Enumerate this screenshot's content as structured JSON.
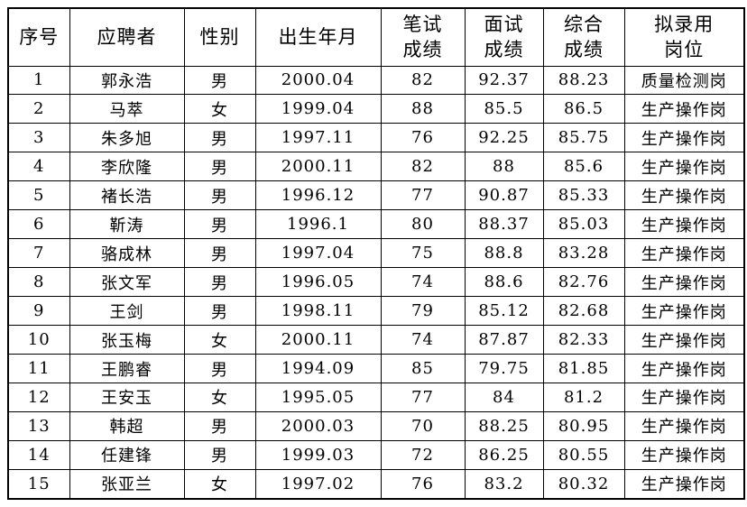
{
  "table": {
    "columns": [
      "序号",
      "应聘者",
      "性别",
      "出生年月",
      "笔试\n成绩",
      "面试\n成绩",
      "综合\n成绩",
      "拟录用\n岗位"
    ],
    "rows": [
      [
        "1",
        "郭永浩",
        "男",
        "2000.04",
        "82",
        "92.37",
        "88.23",
        "质量检测岗"
      ],
      [
        "2",
        "马萃",
        "女",
        "1999.04",
        "88",
        "85.5",
        "86.5",
        "生产操作岗"
      ],
      [
        "3",
        "朱多旭",
        "男",
        "1997.11",
        "76",
        "92.25",
        "85.75",
        "生产操作岗"
      ],
      [
        "4",
        "李欣隆",
        "男",
        "2000.11",
        "82",
        "88",
        "85.6",
        "生产操作岗"
      ],
      [
        "5",
        "褚长浩",
        "男",
        "1996.12",
        "77",
        "90.87",
        "85.33",
        "生产操作岗"
      ],
      [
        "6",
        "靳涛",
        "男",
        "1996.1",
        "80",
        "88.37",
        "85.03",
        "生产操作岗"
      ],
      [
        "7",
        "骆成林",
        "男",
        "1997.04",
        "75",
        "88.8",
        "83.28",
        "生产操作岗"
      ],
      [
        "8",
        "张文军",
        "男",
        "1996.05",
        "74",
        "88.6",
        "82.76",
        "生产操作岗"
      ],
      [
        "9",
        "王剑",
        "男",
        "1998.11",
        "79",
        "85.12",
        "82.68",
        "生产操作岗"
      ],
      [
        "10",
        "张玉梅",
        "女",
        "2000.11",
        "74",
        "87.87",
        "82.33",
        "生产操作岗"
      ],
      [
        "11",
        "王鹏睿",
        "男",
        "1994.09",
        "85",
        "79.75",
        "81.85",
        "生产操作岗"
      ],
      [
        "12",
        "王安玉",
        "女",
        "1995.05",
        "77",
        "84",
        "81.2",
        "生产操作岗"
      ],
      [
        "13",
        "韩超",
        "男",
        "2000.03",
        "70",
        "88.25",
        "80.95",
        "生产操作岗"
      ],
      [
        "14",
        "任建锋",
        "男",
        "1999.03",
        "72",
        "86.25",
        "80.55",
        "生产操作岗"
      ],
      [
        "15",
        "张亚兰",
        "女",
        "1997.02",
        "76",
        "83.2",
        "80.32",
        "生产操作岗"
      ]
    ],
    "colors": {
      "border": "#000000",
      "text": "#000000",
      "background": "#ffffff"
    }
  }
}
